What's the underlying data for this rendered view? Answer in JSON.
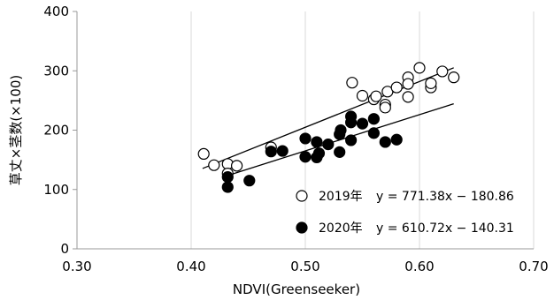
{
  "chart_data": {
    "type": "scatter",
    "xlabel": "NDVI(Greenseeker)",
    "ylabel": "草丈×茎数(×100)",
    "xlim": [
      0.3,
      0.7
    ],
    "ylim": [
      0,
      400
    ],
    "xticks": [
      "0.30",
      "0.40",
      "0.50",
      "0.60",
      "0.70"
    ],
    "yticks": [
      "0",
      "100",
      "200",
      "300",
      "400"
    ],
    "grid": "vertical",
    "legend_position": "bottom-right",
    "series": [
      {
        "name": "2019年",
        "equation": "y = 771.38x − 180.86",
        "marker": "open-circle",
        "slope": 771.38,
        "intercept": -180.86,
        "trend_x": [
          0.41,
          0.63
        ],
        "points": [
          [
            0.411,
            160
          ],
          [
            0.42,
            141
          ],
          [
            0.432,
            143
          ],
          [
            0.432,
            127
          ],
          [
            0.44,
            140
          ],
          [
            0.47,
            171
          ],
          [
            0.541,
            280
          ],
          [
            0.55,
            258
          ],
          [
            0.56,
            252
          ],
          [
            0.562,
            257
          ],
          [
            0.57,
            243
          ],
          [
            0.57,
            238
          ],
          [
            0.572,
            265
          ],
          [
            0.58,
            272
          ],
          [
            0.59,
            289
          ],
          [
            0.59,
            278
          ],
          [
            0.59,
            256
          ],
          [
            0.6,
            305
          ],
          [
            0.61,
            272
          ],
          [
            0.61,
            279
          ],
          [
            0.62,
            299
          ],
          [
            0.63,
            289
          ]
        ]
      },
      {
        "name": "2020年",
        "equation": "y = 610.72x − 140.31",
        "marker": "filled-circle",
        "slope": 610.72,
        "intercept": -140.31,
        "trend_x": [
          0.43,
          0.63
        ],
        "points": [
          [
            0.432,
            104
          ],
          [
            0.432,
            121
          ],
          [
            0.451,
            115
          ],
          [
            0.47,
            164
          ],
          [
            0.48,
            165
          ],
          [
            0.5,
            155
          ],
          [
            0.5,
            186
          ],
          [
            0.51,
            180
          ],
          [
            0.51,
            154
          ],
          [
            0.512,
            161
          ],
          [
            0.52,
            176
          ],
          [
            0.53,
            163
          ],
          [
            0.53,
            193
          ],
          [
            0.531,
            200
          ],
          [
            0.54,
            183
          ],
          [
            0.54,
            223
          ],
          [
            0.54,
            213
          ],
          [
            0.55,
            211
          ],
          [
            0.56,
            195
          ],
          [
            0.56,
            219
          ],
          [
            0.57,
            180
          ],
          [
            0.58,
            184
          ]
        ]
      }
    ]
  }
}
